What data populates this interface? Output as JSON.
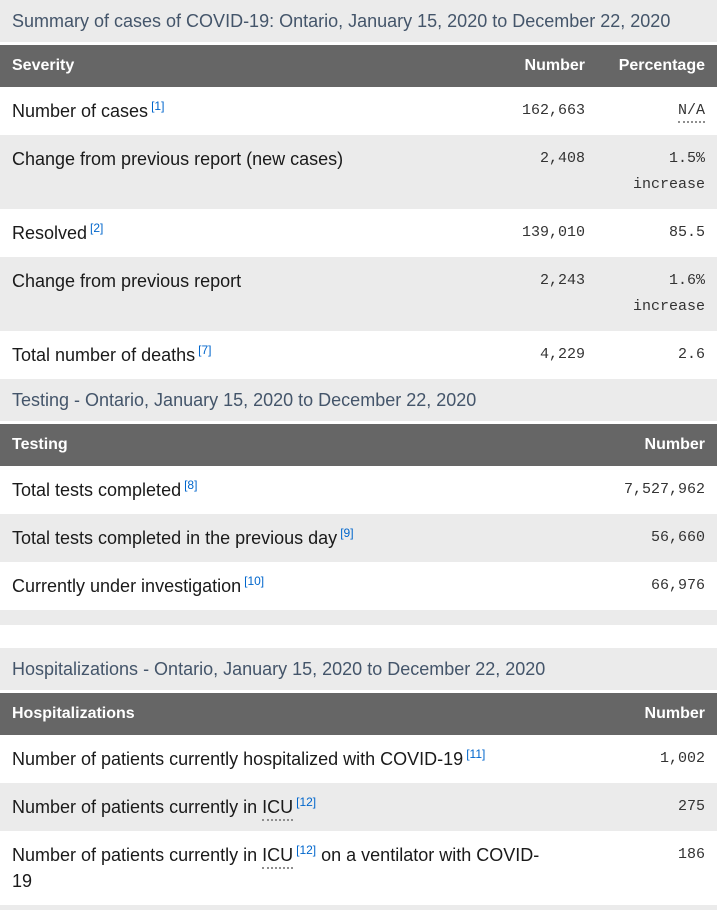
{
  "colors": {
    "header_bg": "#666666",
    "alt_row_bg": "#ebebeb",
    "caption_text": "#44556a",
    "body_text": "#1a1a1a",
    "footnote_link": "#0066cc",
    "number_text": "#333333"
  },
  "tables": {
    "summary": {
      "caption": "Summary of cases of COVID-19: Ontario, January 15, 2020 to December 22, 2020",
      "columns": [
        "Severity",
        "Number",
        "Percentage"
      ],
      "rows": [
        {
          "label": "Number of cases",
          "footnote": "[1]",
          "number": "162,663",
          "percentage": "N/A"
        },
        {
          "label": "Change from previous report (new cases)",
          "number": "2,408",
          "percentage": "1.5%",
          "percentage_note": "increase"
        },
        {
          "label": "Resolved",
          "footnote": "[2]",
          "number": "139,010",
          "percentage": "85.5"
        },
        {
          "label": "Change from previous report",
          "number": "2,243",
          "percentage": "1.6%",
          "percentage_note": "increase"
        },
        {
          "label": "Total number of deaths",
          "footnote": "[7]",
          "number": "4,229",
          "percentage": "2.6"
        }
      ]
    },
    "testing": {
      "caption": "Testing - Ontario, January 15, 2020 to December 22, 2020",
      "columns": [
        "Testing",
        "Number"
      ],
      "rows": [
        {
          "label": "Total tests completed",
          "footnote": "[8]",
          "number": "7,527,962"
        },
        {
          "label": "Total tests completed in the previous day",
          "footnote": "[9]",
          "number": "56,660"
        },
        {
          "label": "Currently under investigation",
          "footnote": "[10]",
          "number": "66,976"
        }
      ]
    },
    "hospitalizations": {
      "caption": "Hospitalizations - Ontario, January 15, 2020 to December 22, 2020",
      "columns": [
        "Hospitalizations",
        "Number"
      ],
      "rows": [
        {
          "label": "Number of patients currently hospitalized with COVID-19",
          "footnote": "[11]",
          "number": "1,002"
        },
        {
          "label_prefix": "Number of patients currently in ",
          "abbr": "ICU",
          "footnote": "[12]",
          "label_suffix": "",
          "number": "275"
        },
        {
          "label_prefix": "Number of patients currently in ",
          "abbr": "ICU",
          "footnote": "[12]",
          "label_suffix": " on a ventilator with COVID-19",
          "number": "186"
        }
      ]
    }
  }
}
